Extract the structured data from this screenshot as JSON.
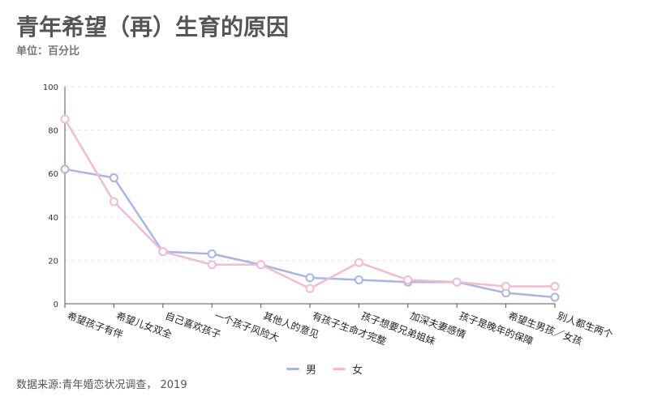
{
  "title": "青年希望（再）生育的原因",
  "subtitle": "单位：百分比",
  "source": "数据来源:青年婚恋状况调查， 2019",
  "colors": {
    "male": "#aab4e8",
    "female": "#f2bcd0",
    "axis": "#555555",
    "grid": "#e6e6e6"
  },
  "chart_data": {
    "type": "line",
    "title": "青年希望（再）生育的原因",
    "xlabel": "",
    "ylabel": "",
    "ylim": [
      0,
      100
    ],
    "yticks": [
      0,
      20,
      40,
      60,
      80,
      100
    ],
    "grid": true,
    "legend": "bottom-center",
    "categories": [
      "希望孩子有伴",
      "希望儿女双全",
      "自己喜欢孩子",
      "一个孩子风险大",
      "其他人的意见",
      "有孩子生命才完整",
      "孩子想要兄弟姐妹",
      "加深夫妻感情",
      "孩子是晚年的保障",
      "希望生男孩／女孩",
      "别人都生两个"
    ],
    "series": [
      {
        "name": "男",
        "color": "#aab4e8",
        "values": [
          62,
          58,
          24,
          23,
          18,
          12,
          11,
          10,
          10,
          5,
          3
        ]
      },
      {
        "name": "女",
        "color": "#f2bcd0",
        "values": [
          85,
          47,
          24,
          18,
          18,
          7,
          19,
          11,
          10,
          8,
          8
        ]
      }
    ]
  }
}
